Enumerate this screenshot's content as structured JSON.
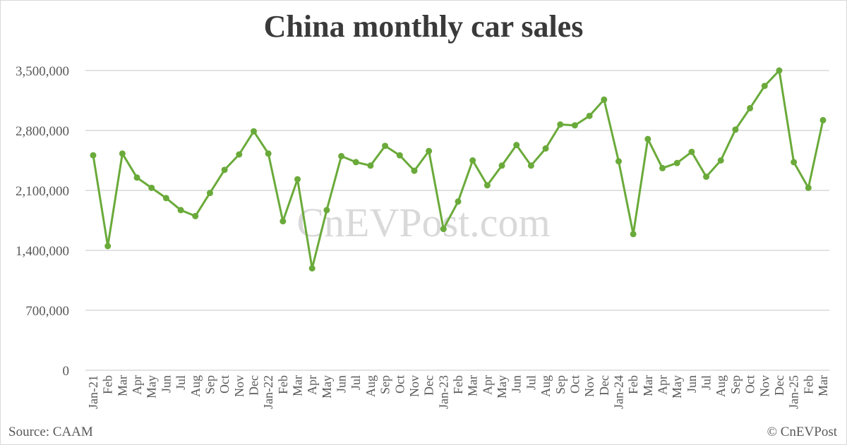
{
  "title": "China monthly car sales",
  "source": "Source: CAAM",
  "copyright": "© CnEVPost",
  "watermark": "CnEVPost.com",
  "colors": {
    "line": "#6aaa3a",
    "grid": "#d9d9d9",
    "text": "#595959",
    "title": "#3a3a3a",
    "watermark": "#d0d0d0"
  },
  "chart_data": {
    "type": "line",
    "title": "China monthly car sales",
    "xlabel": "",
    "ylabel": "",
    "ylim": [
      0,
      3500000
    ],
    "yticks": [
      0,
      700000,
      1400000,
      2100000,
      2800000,
      3500000
    ],
    "ytick_labels": [
      "0",
      "700,000",
      "1,400,000",
      "2,100,000",
      "2,800,000",
      "3,500,000"
    ],
    "grid": true,
    "legend": "none",
    "categories": [
      "Jan-21",
      "Feb",
      "Mar",
      "Apr",
      "May",
      "Jun",
      "Jul",
      "Aug",
      "Sep",
      "Oct",
      "Nov",
      "Dec",
      "Jan-22",
      "Feb",
      "Mar",
      "Apr",
      "May",
      "Jun",
      "Jul",
      "Aug",
      "Sep",
      "Oct",
      "Nov",
      "Dec",
      "Jan-23",
      "Feb",
      "Mar",
      "Apr",
      "May",
      "Jun",
      "Jul",
      "Aug",
      "Sep",
      "Oct",
      "Nov",
      "Dec",
      "Jan-24",
      "Feb",
      "Mar",
      "Apr",
      "May",
      "Jun",
      "Jul",
      "Aug",
      "Sep",
      "Oct",
      "Nov",
      "Dec",
      "Jan-25",
      "Feb",
      "Mar"
    ],
    "series": [
      {
        "name": "Car sales",
        "values": [
          2510000,
          1450000,
          2530000,
          2250000,
          2130000,
          2010000,
          1870000,
          1800000,
          2070000,
          2340000,
          2520000,
          2790000,
          2530000,
          1740000,
          2230000,
          1190000,
          1870000,
          2500000,
          2430000,
          2390000,
          2620000,
          2510000,
          2330000,
          2560000,
          1650000,
          1970000,
          2450000,
          2160000,
          2390000,
          2630000,
          2390000,
          2590000,
          2870000,
          2860000,
          2970000,
          3160000,
          2440000,
          1590000,
          2700000,
          2360000,
          2420000,
          2550000,
          2260000,
          2450000,
          2810000,
          3060000,
          3320000,
          3500000,
          2430000,
          2130000,
          2920000
        ]
      }
    ]
  }
}
